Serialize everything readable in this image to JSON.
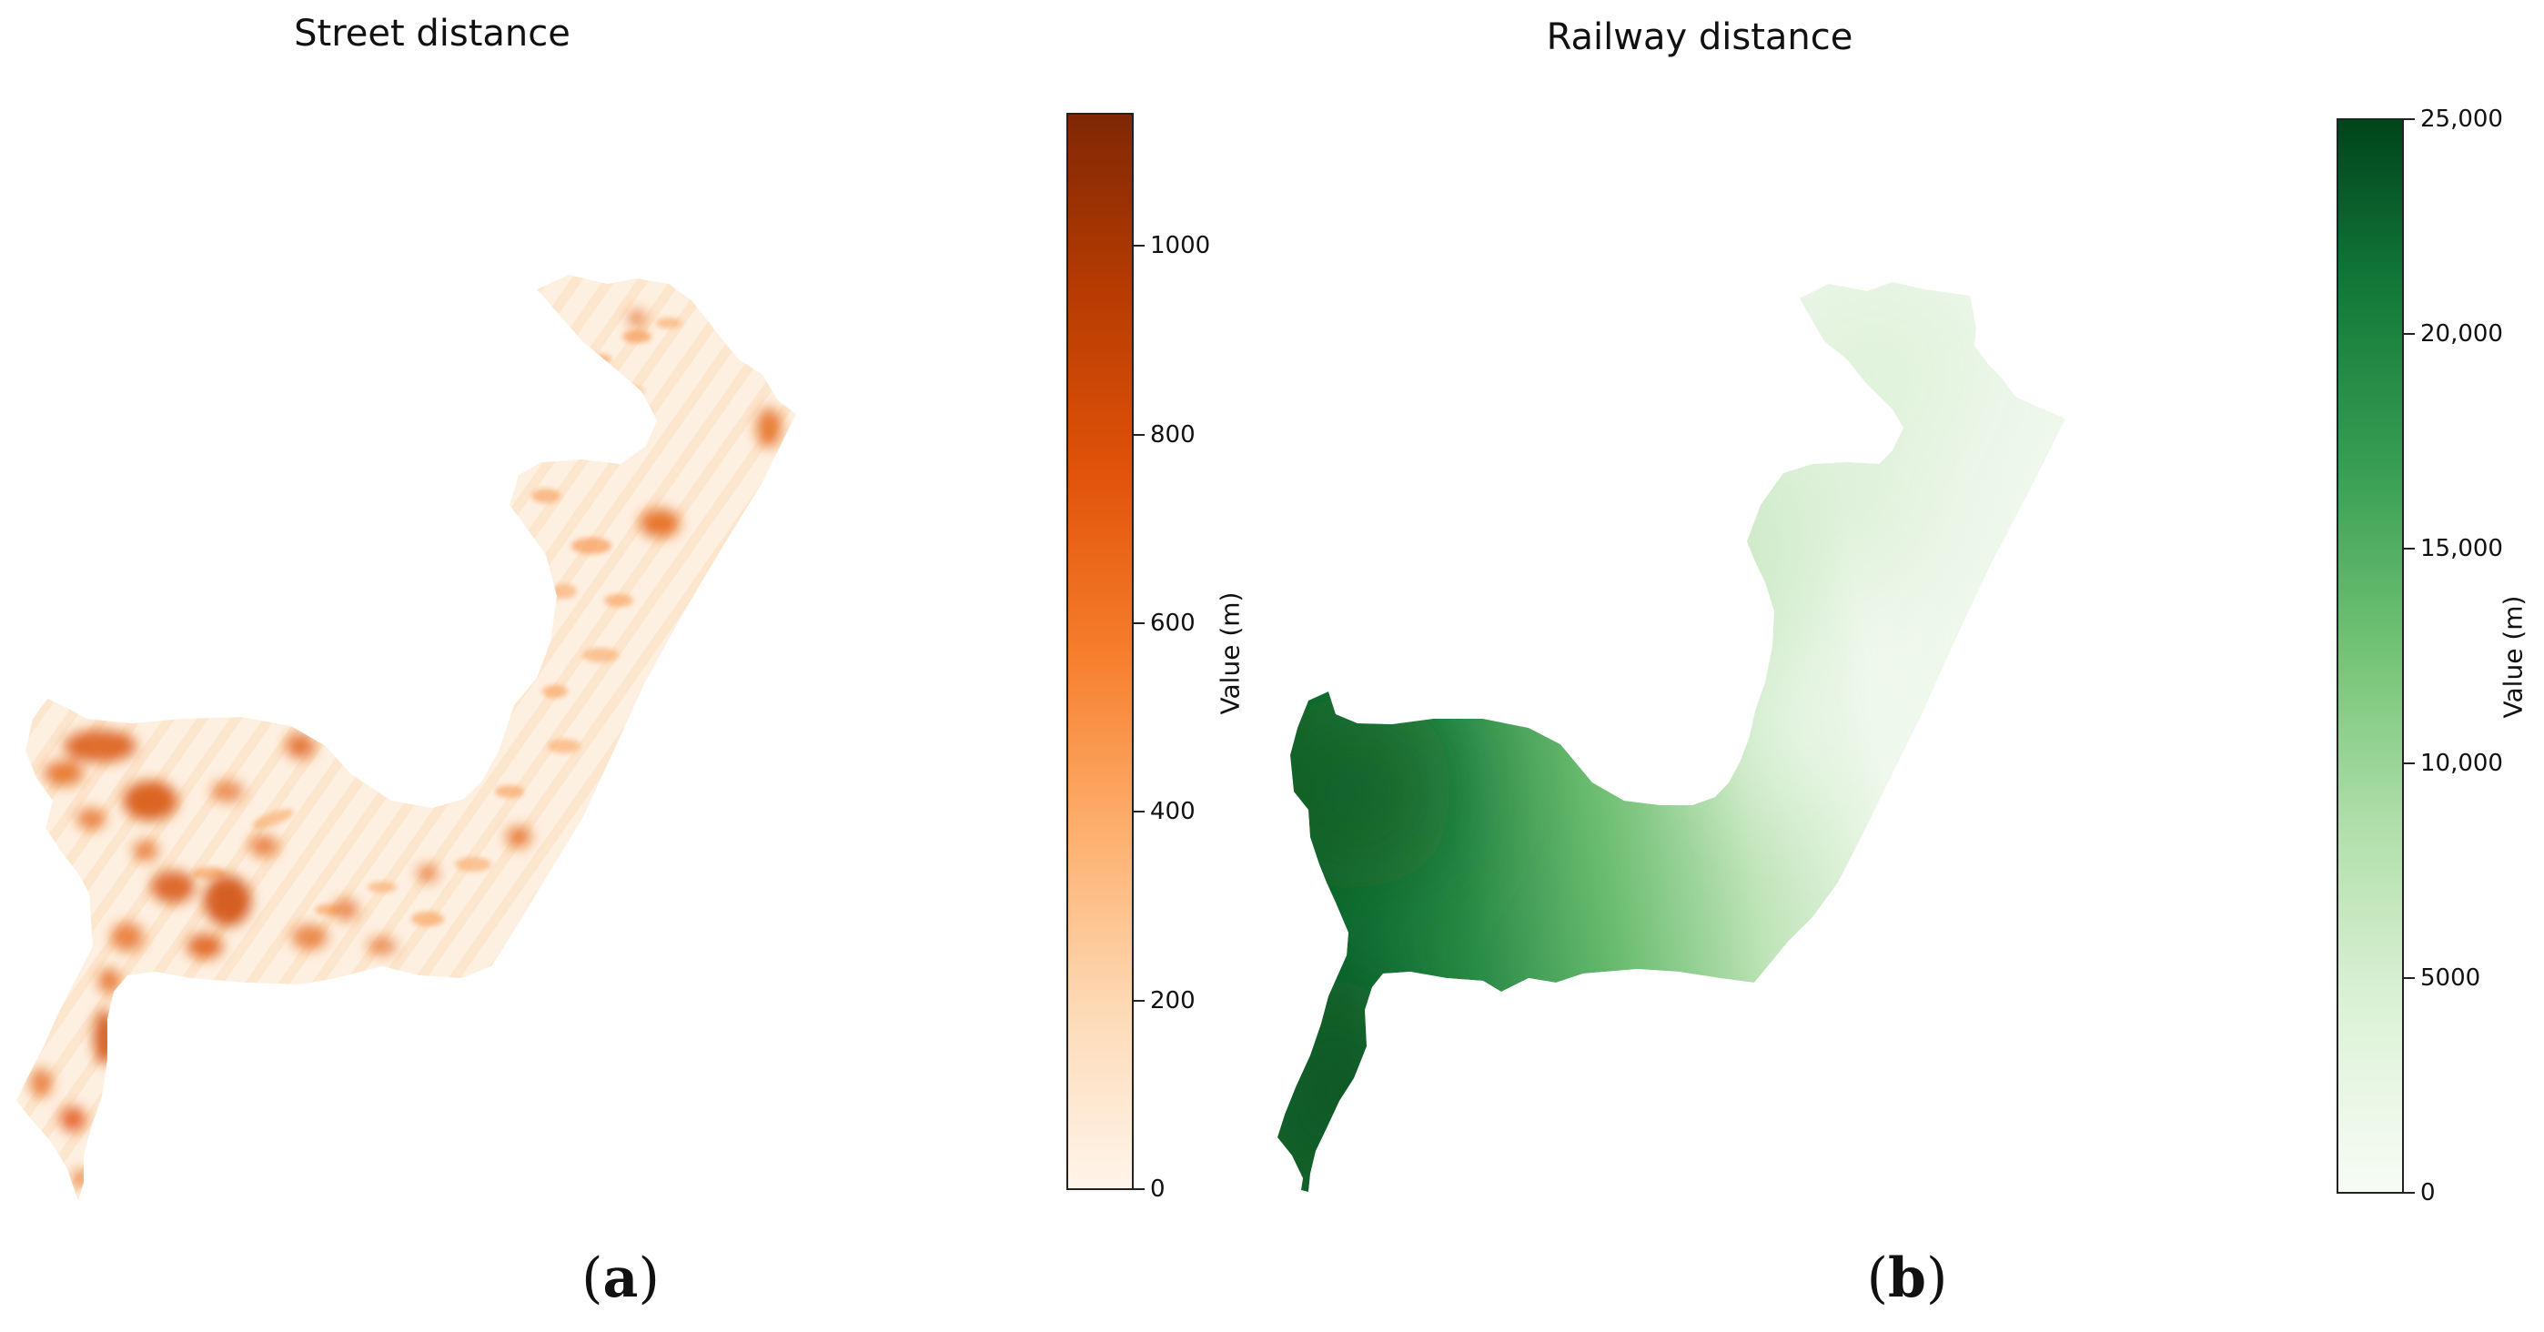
{
  "panels": [
    {
      "id": "a",
      "title": "Street distance",
      "letter": "a",
      "colormap": "Oranges",
      "colorbar": {
        "label": "Value (m)",
        "min": 0,
        "max": 1140,
        "ticks": [
          0,
          200,
          400,
          600,
          800,
          1000
        ],
        "tick_labels": [
          "0",
          "200",
          "400",
          "600",
          "800",
          "1000"
        ],
        "colors": [
          "#fff5eb",
          "#fdd9b4",
          "#fdad6b",
          "#f67d2b",
          "#e05209",
          "#b53b02",
          "#7f2704"
        ]
      }
    },
    {
      "id": "b",
      "title": "Railway distance",
      "letter": "b",
      "colormap": "Greens",
      "colorbar": {
        "label": "Value (m)",
        "min": 0,
        "max": 25000,
        "ticks": [
          0,
          5000,
          10000,
          15000,
          20000,
          25000
        ],
        "tick_labels": [
          "0",
          "5000",
          "10,000",
          "15,000",
          "20,000",
          "25,000"
        ],
        "colors": [
          "#f7fcf5",
          "#ddf2d8",
          "#b1dfab",
          "#74c476",
          "#3a9f54",
          "#137a3a",
          "#00441b"
        ]
      }
    }
  ]
}
